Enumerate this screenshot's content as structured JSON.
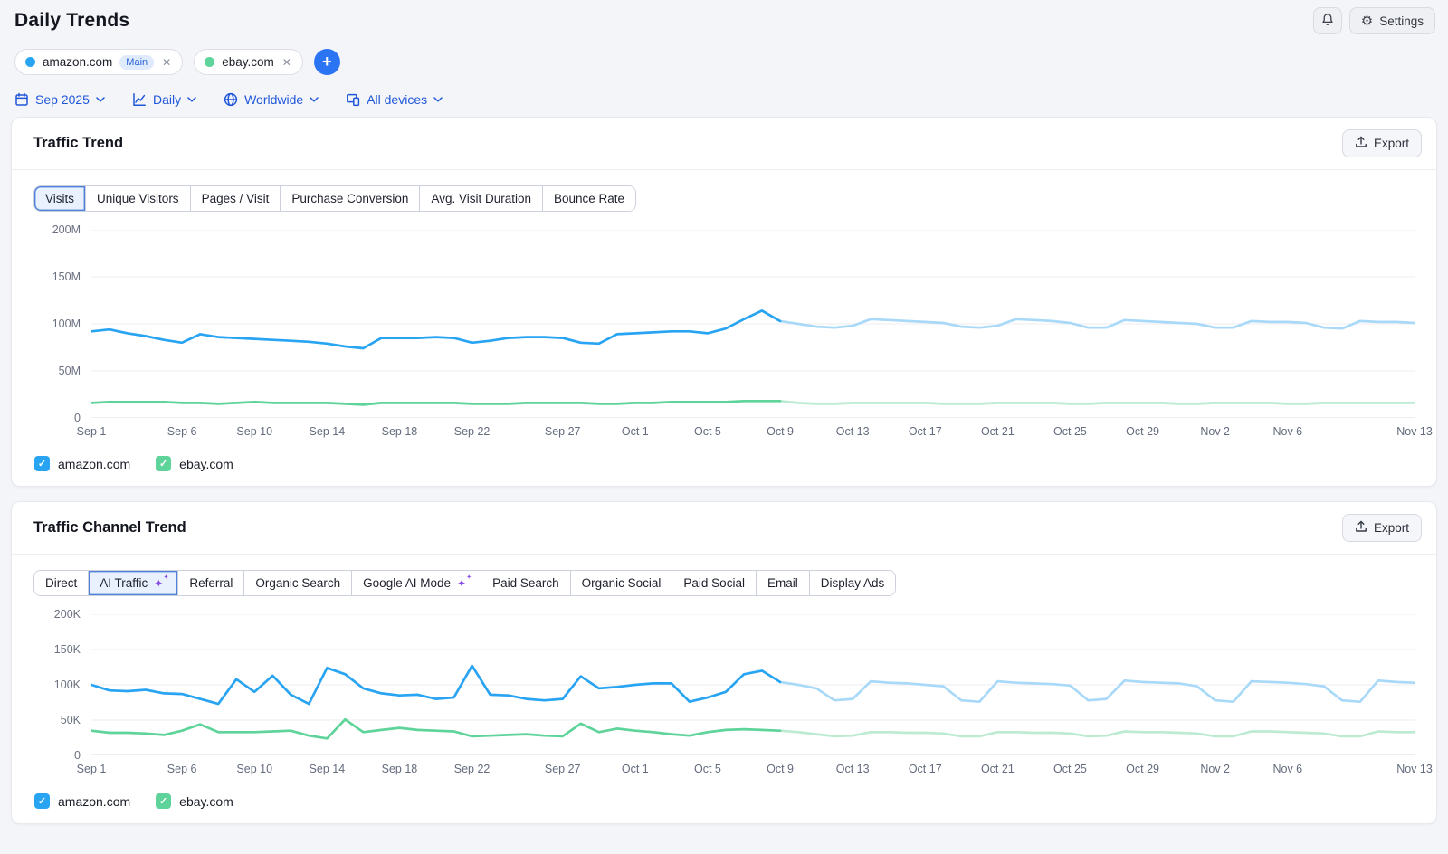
{
  "page": {
    "title": "Daily Trends"
  },
  "header": {
    "settings_label": "Settings",
    "icons": [
      "bell-icon",
      "gear-icon"
    ]
  },
  "colors": {
    "accent_blue": "#2057d9",
    "amazon_blue": "#29a4f2",
    "amazon_forecast_blue": "#a9d9f8",
    "ebay_green": "#5ed39a",
    "ebay_forecast_green": "#bcebd2",
    "sparkle_purple": "#8a4be9",
    "check_glyph": "✓",
    "close_glyph": "✕",
    "plus_glyph": "+",
    "chevron_glyph": "⌄"
  },
  "domains": [
    {
      "name": "amazon.com",
      "badge": "Main",
      "color": "#29a4f2",
      "forecast_color": "#a9d9f8"
    },
    {
      "name": "ebay.com",
      "badge": "",
      "color": "#5ed39a",
      "forecast_color": "#bcebd2"
    }
  ],
  "filters": [
    {
      "label": "Sep 2025",
      "icon": "calendar-icon"
    },
    {
      "label": "Daily",
      "icon": "line-chart-icon"
    },
    {
      "label": "Worldwide",
      "icon": "globe-icon"
    },
    {
      "label": "All devices",
      "icon": "devices-icon"
    }
  ],
  "cards": [
    {
      "title": "Traffic Trend",
      "export_label": "Export",
      "tabs": [
        {
          "label": "Visits",
          "active": true,
          "sparkle": false
        },
        {
          "label": "Unique Visitors",
          "active": false,
          "sparkle": false
        },
        {
          "label": "Pages / Visit",
          "active": false,
          "sparkle": false
        },
        {
          "label": "Purchase Conversion",
          "active": false,
          "sparkle": false
        },
        {
          "label": "Avg. Visit Duration",
          "active": false,
          "sparkle": false
        },
        {
          "label": "Bounce Rate",
          "active": false,
          "sparkle": false
        }
      ]
    },
    {
      "title": "Traffic Channel Trend",
      "export_label": "Export",
      "tabs": [
        {
          "label": "Direct",
          "active": false,
          "sparkle": false
        },
        {
          "label": "AI Traffic",
          "active": true,
          "sparkle": true
        },
        {
          "label": "Referral",
          "active": false,
          "sparkle": false
        },
        {
          "label": "Organic Search",
          "active": false,
          "sparkle": false
        },
        {
          "label": "Google AI Mode",
          "active": false,
          "sparkle": true
        },
        {
          "label": "Paid Search",
          "active": false,
          "sparkle": false
        },
        {
          "label": "Organic Social",
          "active": false,
          "sparkle": false
        },
        {
          "label": "Paid Social",
          "active": false,
          "sparkle": false
        },
        {
          "label": "Email",
          "active": false,
          "sparkle": false
        },
        {
          "label": "Display Ads",
          "active": false,
          "sparkle": false
        }
      ]
    }
  ],
  "chart_data": [
    {
      "type": "line",
      "title": "Traffic Trend — Visits",
      "unit": "millions of visits per day",
      "ymax": 200,
      "y_ticks": [
        "0",
        "50M",
        "100M",
        "150M",
        "200M"
      ],
      "days": 74,
      "date_range": "Sep 1 – Nov 13",
      "forecast_start_index": 38,
      "forecast_note": "values after Oct 9 drawn in lighter color (estimated)",
      "x_ticks": [
        {
          "label": "Sep 1",
          "day": 0
        },
        {
          "label": "Sep 6",
          "day": 5
        },
        {
          "label": "Sep 10",
          "day": 9
        },
        {
          "label": "Sep 14",
          "day": 13
        },
        {
          "label": "Sep 18",
          "day": 17
        },
        {
          "label": "Sep 22",
          "day": 21
        },
        {
          "label": "Sep 27",
          "day": 26
        },
        {
          "label": "Oct 1",
          "day": 30
        },
        {
          "label": "Oct 5",
          "day": 34
        },
        {
          "label": "Oct 9",
          "day": 38
        },
        {
          "label": "Oct 13",
          "day": 42
        },
        {
          "label": "Oct 17",
          "day": 46
        },
        {
          "label": "Oct 21",
          "day": 50
        },
        {
          "label": "Oct 25",
          "day": 54
        },
        {
          "label": "Oct 29",
          "day": 58
        },
        {
          "label": "Nov 2",
          "day": 62
        },
        {
          "label": "Nov 6",
          "day": 66
        },
        {
          "label": "Nov 13",
          "day": 73
        }
      ],
      "series": [
        {
          "name": "amazon.com",
          "color": "#29a4f2",
          "forecast_color": "#a9d9f8",
          "values": [
            92,
            94,
            90,
            87,
            83,
            80,
            89,
            86,
            85,
            84,
            83,
            82,
            81,
            79,
            76,
            74,
            85,
            85,
            85,
            86,
            85,
            80,
            82,
            85,
            86,
            86,
            85,
            80,
            79,
            89,
            90,
            91,
            92,
            92,
            90,
            95,
            105,
            114,
            103,
            100,
            97,
            96,
            98,
            105,
            104,
            103,
            102,
            101,
            97,
            96,
            98,
            105,
            104,
            103,
            101,
            96,
            96,
            104,
            103,
            102,
            101,
            100,
            96,
            96,
            103,
            102,
            102,
            101,
            96,
            95,
            103,
            102,
            102,
            101
          ]
        },
        {
          "name": "ebay.com",
          "color": "#5ed39a",
          "forecast_color": "#bcebd2",
          "values": [
            16,
            17,
            17,
            17,
            17,
            16,
            16,
            15,
            16,
            17,
            16,
            16,
            16,
            16,
            15,
            14,
            16,
            16,
            16,
            16,
            16,
            15,
            15,
            15,
            16,
            16,
            16,
            16,
            15,
            15,
            16,
            16,
            17,
            17,
            17,
            17,
            18,
            18,
            18,
            16,
            15,
            15,
            16,
            16,
            16,
            16,
            16,
            15,
            15,
            15,
            16,
            16,
            16,
            16,
            15,
            15,
            16,
            16,
            16,
            16,
            15,
            15,
            16,
            16,
            16,
            16,
            15,
            15,
            16,
            16,
            16,
            16,
            16,
            16
          ]
        }
      ],
      "legend": [
        "amazon.com",
        "ebay.com"
      ]
    },
    {
      "type": "line",
      "title": "Traffic Channel Trend — AI Traffic",
      "unit": "thousands of visits per day",
      "ymax": 200,
      "y_ticks": [
        "0",
        "50K",
        "100K",
        "150K",
        "200K"
      ],
      "days": 74,
      "date_range": "Sep 1 – Nov 13",
      "forecast_start_index": 38,
      "forecast_note": "values after Oct 9 drawn in lighter color (estimated)",
      "x_ticks": [
        {
          "label": "Sep 1",
          "day": 0
        },
        {
          "label": "Sep 6",
          "day": 5
        },
        {
          "label": "Sep 10",
          "day": 9
        },
        {
          "label": "Sep 14",
          "day": 13
        },
        {
          "label": "Sep 18",
          "day": 17
        },
        {
          "label": "Sep 22",
          "day": 21
        },
        {
          "label": "Sep 27",
          "day": 26
        },
        {
          "label": "Oct 1",
          "day": 30
        },
        {
          "label": "Oct 5",
          "day": 34
        },
        {
          "label": "Oct 9",
          "day": 38
        },
        {
          "label": "Oct 13",
          "day": 42
        },
        {
          "label": "Oct 17",
          "day": 46
        },
        {
          "label": "Oct 21",
          "day": 50
        },
        {
          "label": "Oct 25",
          "day": 54
        },
        {
          "label": "Oct 29",
          "day": 58
        },
        {
          "label": "Nov 2",
          "day": 62
        },
        {
          "label": "Nov 6",
          "day": 66
        },
        {
          "label": "Nov 13",
          "day": 73
        }
      ],
      "series": [
        {
          "name": "amazon.com",
          "color": "#29a4f2",
          "forecast_color": "#a9d9f8",
          "values": [
            100,
            92,
            91,
            93,
            88,
            87,
            80,
            73,
            108,
            90,
            113,
            86,
            73,
            124,
            115,
            95,
            88,
            85,
            86,
            80,
            82,
            127,
            86,
            85,
            80,
            78,
            80,
            112,
            95,
            97,
            100,
            102,
            102,
            76,
            82,
            90,
            115,
            120,
            104,
            100,
            95,
            78,
            80,
            105,
            103,
            102,
            100,
            98,
            78,
            76,
            105,
            103,
            102,
            101,
            99,
            78,
            80,
            106,
            104,
            103,
            102,
            98,
            78,
            76,
            105,
            104,
            103,
            101,
            98,
            78,
            76,
            106,
            104,
            103
          ]
        },
        {
          "name": "ebay.com",
          "color": "#5ed39a",
          "forecast_color": "#bcebd2",
          "values": [
            35,
            32,
            32,
            31,
            29,
            35,
            44,
            33,
            33,
            33,
            34,
            35,
            28,
            24,
            51,
            33,
            36,
            39,
            36,
            35,
            34,
            27,
            28,
            29,
            30,
            28,
            27,
            45,
            33,
            38,
            35,
            33,
            30,
            28,
            33,
            36,
            37,
            36,
            35,
            33,
            30,
            27,
            28,
            33,
            33,
            32,
            32,
            31,
            27,
            27,
            33,
            33,
            32,
            32,
            31,
            27,
            28,
            34,
            33,
            33,
            32,
            31,
            27,
            27,
            34,
            34,
            33,
            32,
            31,
            27,
            27,
            34,
            33,
            33
          ]
        }
      ],
      "legend": [
        "amazon.com",
        "ebay.com"
      ]
    }
  ]
}
